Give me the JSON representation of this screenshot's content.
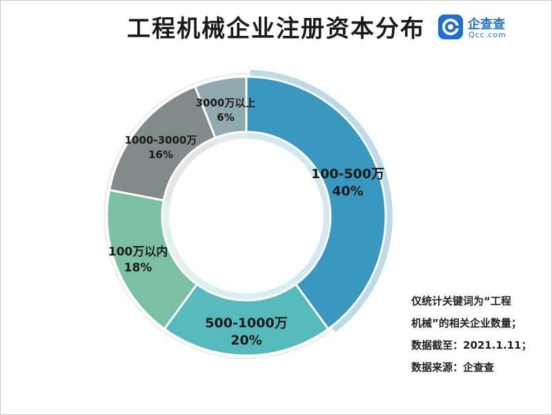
{
  "title": "工程机械企业注册资本分布",
  "logo": {
    "cn": "企查查",
    "en": "Qcc.com",
    "color": "#1f6fd1"
  },
  "chart_data": {
    "type": "pie",
    "variant": "donut",
    "categories": [
      "100-500万",
      "500-1000万",
      "100万以内",
      "1000-3000万",
      "3000万以上"
    ],
    "values": [
      40,
      20,
      18,
      16,
      6
    ],
    "labels": [
      "40%",
      "20%",
      "18%",
      "16%",
      "6%"
    ],
    "colors": [
      "#3a97bf",
      "#56b9bb",
      "#7bc0a5",
      "#818b89",
      "#8fa9ae"
    ]
  },
  "notes": [
    "仅统计关键词为“工程",
    "机械”的相关企业数量；",
    "数据截至：2021.1.11；",
    "数据来源：企查查"
  ]
}
